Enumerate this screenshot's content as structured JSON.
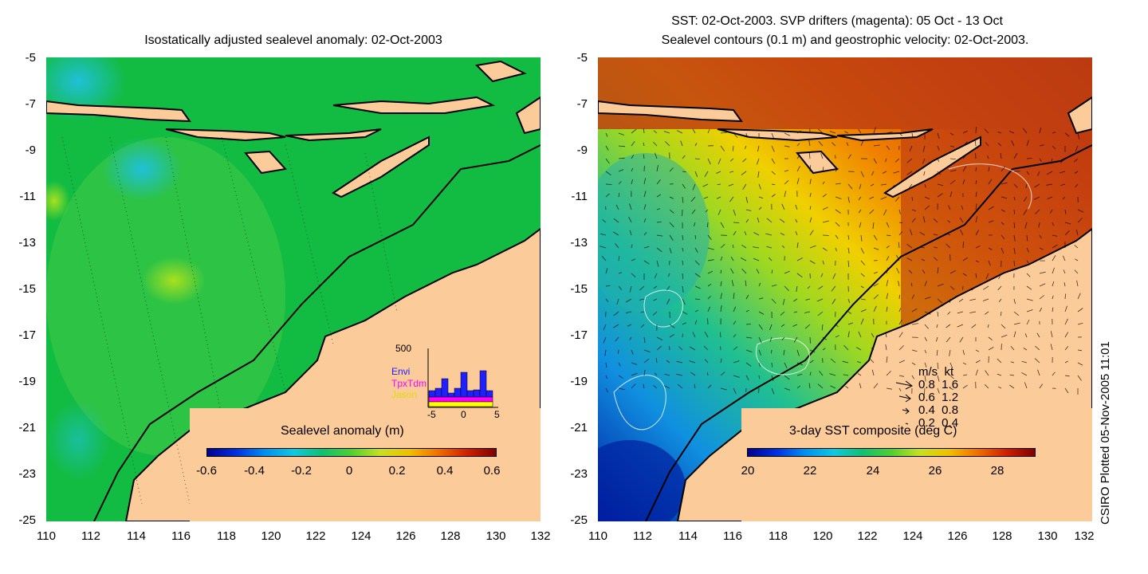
{
  "left_panel": {
    "title": "Isostatically adjusted sealevel anomaly: 02-Oct-2003",
    "colorbar": {
      "label": "Sealevel anomaly (m)",
      "ticks": [
        "-0.6",
        "-0.4",
        "-0.2",
        "0",
        "0.2",
        "0.4",
        "0.6"
      ]
    },
    "inset": {
      "ymax_label": "500",
      "series": [
        "Envi",
        "TpxTdm",
        "Jason"
      ],
      "series_colors": [
        "#2020ff",
        "#ff00ff",
        "#ffff00"
      ],
      "xticks": [
        "-5",
        "0",
        "5"
      ]
    }
  },
  "right_panel": {
    "title_line1": "SST: 02-Oct-2003. SVP drifters (magenta): 05 Oct - 13 Oct",
    "title_line2": "Sealevel contours (0.1 m) and geostrophic velocity: 02-Oct-2003.",
    "colorbar": {
      "label": "3-day SST composite (deg C)",
      "ticks": [
        "20",
        "22",
        "24",
        "26",
        "28"
      ]
    },
    "speed_legend": {
      "header": "m/s  kt",
      "rows": [
        "0.8  1.6",
        "0.6  1.2",
        "0.4  0.8",
        "0.2  0.4"
      ]
    }
  },
  "axes": {
    "y_ticks": [
      "-5",
      "-7",
      "-9",
      "-11",
      "-13",
      "-15",
      "-17",
      "-19",
      "-21",
      "-23",
      "-25"
    ],
    "x_ticks": [
      "110",
      "112",
      "114",
      "116",
      "118",
      "120",
      "122",
      "124",
      "126",
      "128",
      "130",
      "132"
    ]
  },
  "credit": "CSIRO Plotted 05-Nov-2005 11:01",
  "colors": {
    "land": "#fccb9a",
    "ocean_left": "#10b840",
    "ocean_right_warm": "#d04010"
  }
}
